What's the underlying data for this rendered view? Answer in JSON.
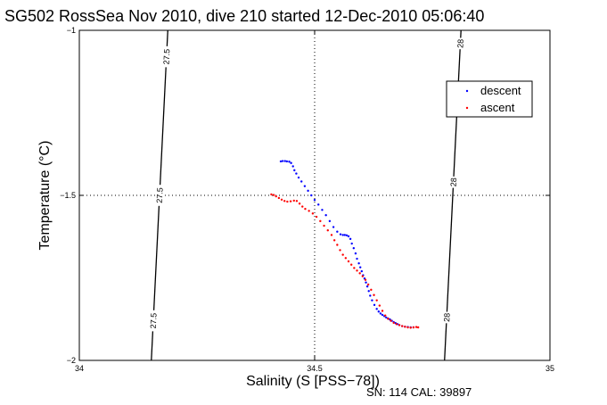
{
  "chart_data": {
    "type": "scatter",
    "title": "SG502 RossSea Nov 2010, dive 210 started 12-Dec-2010 05:06:40",
    "xlabel": "Salinity (S [PSS−78])",
    "ylabel": "Temperature (°C)",
    "footnote": "SN: 114  CAL: 39897",
    "xlim": [
      34,
      35
    ],
    "ylim": [
      -2,
      -1
    ],
    "xticks": [
      34,
      34.5,
      35
    ],
    "xtick_labels": [
      "34",
      "34.5",
      "35"
    ],
    "yticks": [
      -2,
      -1.5,
      -1
    ],
    "ytick_labels": [
      "−2",
      "−1.5",
      "−1"
    ],
    "grid": "dotted lines at x=34.5 and y=-1.5",
    "legend_position": "top-right",
    "series": [
      {
        "name": "descent",
        "color": "#0000ff",
        "x": [
          34.428,
          34.432,
          34.437,
          34.441,
          34.446,
          34.45,
          34.454,
          34.457,
          34.461,
          34.466,
          34.472,
          34.479,
          34.486,
          34.493,
          34.5,
          34.508,
          34.516,
          34.524,
          34.532,
          34.54,
          34.548,
          34.555,
          34.56,
          34.564,
          34.568,
          34.572,
          34.576,
          34.579,
          34.583,
          34.587,
          34.59,
          34.594,
          34.597,
          34.6,
          34.603,
          34.606,
          34.609,
          34.612,
          34.615,
          34.618,
          34.622,
          34.627,
          34.632,
          34.636,
          34.64,
          34.644,
          34.648,
          34.652,
          34.656,
          34.66,
          34.664,
          34.668,
          34.672,
          34.676,
          34.68,
          34.686,
          34.692,
          34.698,
          34.704,
          34.71
        ],
        "y": [
          -1.397,
          -1.396,
          -1.396,
          -1.397,
          -1.398,
          -1.402,
          -1.412,
          -1.424,
          -1.434,
          -1.446,
          -1.458,
          -1.472,
          -1.486,
          -1.5,
          -1.514,
          -1.528,
          -1.544,
          -1.56,
          -1.578,
          -1.596,
          -1.61,
          -1.618,
          -1.62,
          -1.62,
          -1.621,
          -1.624,
          -1.632,
          -1.646,
          -1.66,
          -1.676,
          -1.692,
          -1.706,
          -1.718,
          -1.73,
          -1.742,
          -1.752,
          -1.764,
          -1.776,
          -1.79,
          -1.804,
          -1.818,
          -1.832,
          -1.844,
          -1.852,
          -1.858,
          -1.862,
          -1.866,
          -1.87,
          -1.873,
          -1.876,
          -1.88,
          -1.884,
          -1.887,
          -1.89,
          -1.893,
          -1.896,
          -1.898,
          -1.899,
          -1.9,
          -1.9
        ]
      },
      {
        "name": "ascent",
        "color": "#ff0000",
        "x": [
          34.408,
          34.413,
          34.418,
          34.424,
          34.43,
          34.436,
          34.442,
          34.449,
          34.456,
          34.462,
          34.468,
          34.474,
          34.48,
          34.488,
          34.496,
          34.504,
          34.512,
          34.52,
          34.528,
          34.536,
          34.542,
          34.548,
          34.554,
          34.56,
          34.566,
          34.572,
          34.578,
          34.584,
          34.59,
          34.596,
          34.602,
          34.608,
          34.614,
          34.62,
          34.626,
          34.632,
          34.638,
          34.644,
          34.65,
          34.656,
          34.662,
          34.668,
          34.674,
          34.68,
          34.686,
          34.692,
          34.698,
          34.704,
          34.71,
          34.716,
          34.72
        ],
        "y": [
          -1.497,
          -1.499,
          -1.503,
          -1.508,
          -1.513,
          -1.517,
          -1.519,
          -1.518,
          -1.516,
          -1.517,
          -1.525,
          -1.534,
          -1.541,
          -1.547,
          -1.555,
          -1.565,
          -1.578,
          -1.592,
          -1.606,
          -1.62,
          -1.636,
          -1.65,
          -1.666,
          -1.68,
          -1.69,
          -1.7,
          -1.71,
          -1.72,
          -1.728,
          -1.736,
          -1.745,
          -1.756,
          -1.77,
          -1.786,
          -1.802,
          -1.818,
          -1.834,
          -1.85,
          -1.864,
          -1.874,
          -1.88,
          -1.886,
          -1.89,
          -1.893,
          -1.896,
          -1.898,
          -1.9,
          -1.901,
          -1.9,
          -1.899,
          -1.9
        ]
      }
    ],
    "isopycnals": [
      {
        "label": "27.5",
        "x_at_ylim_min": 34.153,
        "x_at_ylim_max": 34.188,
        "label_temps": [
          -1.08,
          -1.5,
          -1.88
        ]
      },
      {
        "label": "28",
        "x_at_ylim_min": 34.776,
        "x_at_ylim_max": 34.811,
        "label_temps": [
          -1.04,
          -1.46,
          -1.87
        ]
      }
    ]
  }
}
